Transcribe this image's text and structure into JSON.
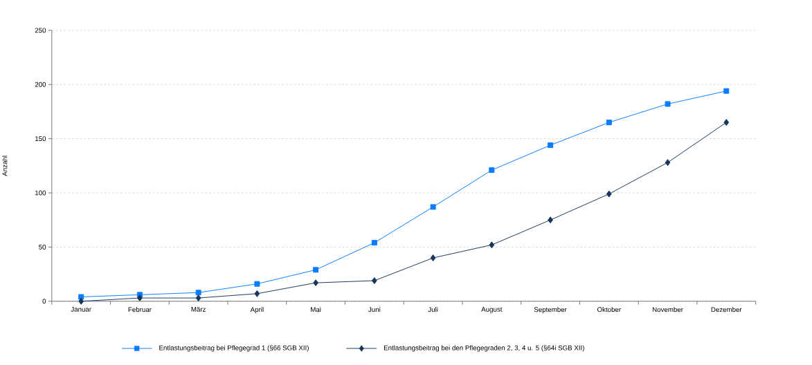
{
  "chart_data": {
    "type": "line",
    "ylabel": "Anzahl",
    "categories": [
      "Januar",
      "Februar",
      "März",
      "April",
      "Mai",
      "Juni",
      "Juli",
      "August",
      "September",
      "Oktober",
      "November",
      "Dezember"
    ],
    "series": [
      {
        "name": "Entlastungsbeitrag bei Pflegegrad 1 (§66 SGB XII)",
        "color": "#0a7cff",
        "marker": "square",
        "values": [
          4,
          6,
          8,
          16,
          29,
          54,
          87,
          121,
          144,
          165,
          182,
          194
        ]
      },
      {
        "name": "Entlastungsbeitrag bei den Pflegegraden 2, 3, 4 u. 5 (§64i SGB XII)",
        "color": "#17365d",
        "marker": "diamond",
        "values": [
          0,
          3,
          3,
          7,
          17,
          19,
          40,
          52,
          75,
          99,
          128,
          165
        ]
      }
    ],
    "ylim": [
      0,
      250
    ],
    "yticks": [
      0,
      50,
      100,
      150,
      200,
      250
    ],
    "grid": "y",
    "legend": "bottom"
  }
}
